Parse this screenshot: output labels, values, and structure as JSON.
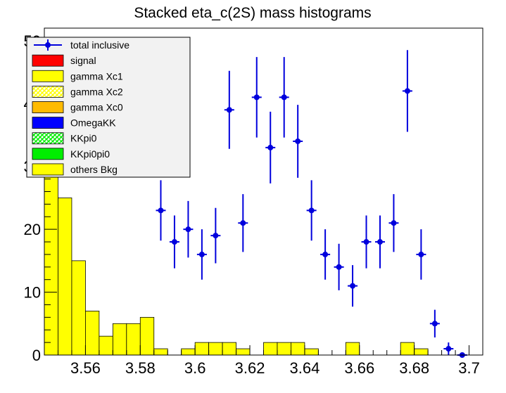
{
  "chart_data": {
    "type": "histogram-stacked",
    "title": "Stacked eta_c(2S) mass histograms",
    "xlabel": "",
    "ylabel": "",
    "xlim": [
      3.545,
      3.705
    ],
    "ylim": [
      0,
      52
    ],
    "bin_start": 3.545,
    "bin_width": 0.005,
    "x_ticks": [
      3.56,
      3.58,
      3.6,
      3.62,
      3.64,
      3.66,
      3.68,
      3.7
    ],
    "x_tick_labels": [
      "3.56",
      "3.58",
      "3.6",
      "3.62",
      "3.64",
      "3.66",
      "3.68",
      "3.7"
    ],
    "y_ticks": [
      0,
      10,
      20,
      30,
      40,
      50
    ],
    "y_tick_labels": [
      "0",
      "10",
      "20",
      "30",
      "40",
      "50"
    ],
    "legend_position": "top-left",
    "series": [
      {
        "name": "others Bkg",
        "color": "#ffff00",
        "pattern": "solid",
        "values": [
          50,
          25,
          15,
          7,
          3,
          5,
          5,
          6,
          1,
          0,
          1,
          2,
          2,
          2,
          1,
          0,
          2,
          2,
          2,
          1,
          0,
          0,
          2,
          0,
          0,
          0,
          2,
          1,
          0,
          0
        ]
      },
      {
        "name": "KKpi0pi0",
        "color": "#00ee00",
        "pattern": "solid",
        "values": [
          0,
          0,
          0,
          0,
          0,
          0,
          0,
          0,
          0,
          0,
          0,
          0,
          0,
          0,
          0,
          0,
          0,
          0,
          0,
          0,
          0,
          0,
          0,
          0,
          0,
          0,
          0,
          0,
          0,
          0
        ]
      },
      {
        "name": "KKpi0",
        "color": "#00ee00",
        "pattern": "hatched",
        "values": [
          0,
          0,
          0,
          0,
          0,
          0,
          0,
          0,
          0,
          0,
          0,
          0,
          0,
          0,
          0,
          0,
          0,
          0,
          0,
          0,
          0,
          0,
          0,
          0,
          0,
          0,
          0,
          0,
          0,
          0
        ]
      },
      {
        "name": "OmegaKK",
        "color": "#0000ff",
        "pattern": "solid",
        "values": [
          0,
          0,
          0,
          0,
          0,
          0,
          0,
          0,
          0,
          0,
          0,
          0,
          0,
          0,
          0,
          0,
          0,
          0,
          0,
          0,
          0,
          0,
          0,
          0,
          0,
          0,
          0,
          0,
          0,
          0
        ]
      },
      {
        "name": "gamma Xc0",
        "color": "#ffbb00",
        "pattern": "solid",
        "values": [
          0,
          0,
          0,
          0,
          0,
          0,
          0,
          0,
          0,
          0,
          0,
          0,
          0,
          0,
          0,
          0,
          0,
          0,
          0,
          0,
          0,
          0,
          0,
          0,
          0,
          0,
          0,
          0,
          0,
          0
        ]
      },
      {
        "name": "gamma Xc2",
        "color": "#ffff00",
        "pattern": "hatched",
        "values": [
          0,
          0,
          0,
          0,
          0,
          0,
          0,
          0,
          0,
          0,
          0,
          0,
          0,
          0,
          0,
          0,
          0,
          0,
          0,
          0,
          0,
          0,
          0,
          0,
          0,
          0,
          0,
          0,
          0,
          0
        ]
      },
      {
        "name": "gamma Xc1",
        "color": "#ffff00",
        "pattern": "solid",
        "values": [
          0,
          0,
          0,
          0,
          0,
          0,
          0,
          0,
          0,
          0,
          0,
          0,
          0,
          0,
          0,
          0,
          0,
          0,
          0,
          0,
          0,
          0,
          0,
          0,
          0,
          0,
          0,
          0,
          0,
          0
        ]
      },
      {
        "name": "signal",
        "color": "#ff0000",
        "pattern": "solid",
        "values": [
          0,
          0,
          0,
          0,
          0,
          0,
          0,
          0,
          0,
          0,
          0,
          0,
          0,
          0,
          0,
          0,
          0,
          0,
          0,
          0,
          0,
          0,
          0,
          0,
          0,
          0,
          0,
          0,
          0,
          0
        ]
      }
    ],
    "data_points": {
      "name": "total inclusive",
      "color": "#0000dd",
      "x": [
        3.5875,
        3.5925,
        3.5975,
        3.6025,
        3.6075,
        3.6125,
        3.6175,
        3.6225,
        3.6275,
        3.6325,
        3.6375,
        3.6425,
        3.6475,
        3.6525,
        3.6575,
        3.6625,
        3.6675,
        3.6725,
        3.6775,
        3.6825,
        3.6875,
        3.6925,
        3.6975
      ],
      "y": [
        23,
        18,
        20,
        16,
        19,
        39,
        21,
        41,
        33,
        41,
        34,
        23,
        16,
        14,
        11,
        18,
        18,
        21,
        42,
        16,
        5,
        1,
        0
      ],
      "err": [
        4.8,
        4.2,
        4.5,
        4.0,
        4.4,
        6.2,
        4.6,
        6.4,
        5.7,
        6.4,
        5.8,
        4.8,
        4.0,
        3.7,
        3.3,
        4.2,
        4.2,
        4.6,
        6.5,
        4.0,
        2.2,
        1.0,
        0
      ]
    }
  }
}
